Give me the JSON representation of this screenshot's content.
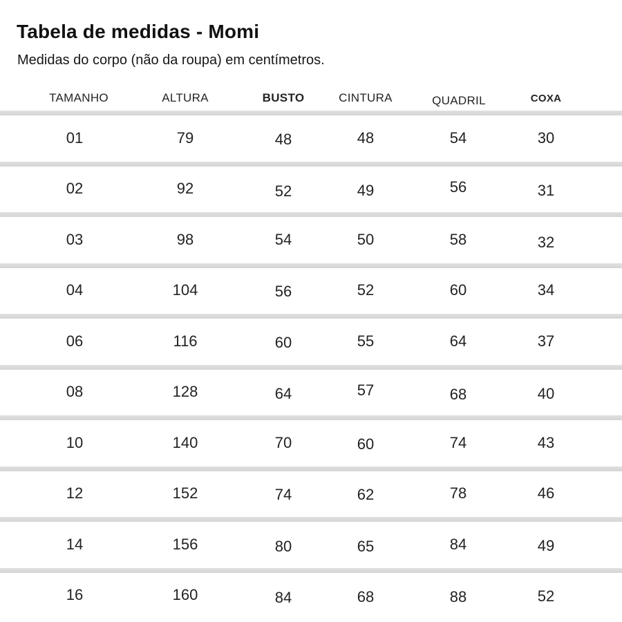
{
  "title": "Tabela de medidas - Momi",
  "subtitle": "Medidas do corpo (não da roupa) em centímetros.",
  "colors": {
    "background": "#ffffff",
    "text": "#1a1a1a",
    "separator": "#d9d9d9"
  },
  "table": {
    "headers": [
      "TAMANHO",
      "ALTURA",
      "BUSTO",
      "CINTURA",
      "QUADRIL",
      "COXA"
    ],
    "unit": "cm",
    "rows": [
      [
        "01",
        "79",
        "48",
        "48",
        "54",
        "30"
      ],
      [
        "02",
        "92",
        "52",
        "49",
        "56",
        "31"
      ],
      [
        "03",
        "98",
        "54",
        "50",
        "58",
        "32"
      ],
      [
        "04",
        "104",
        "56",
        "52",
        "60",
        "34"
      ],
      [
        "06",
        "116",
        "60",
        "55",
        "64",
        "37"
      ],
      [
        "08",
        "128",
        "64",
        "57",
        "68",
        "40"
      ],
      [
        "10",
        "140",
        "70",
        "60",
        "74",
        "43"
      ],
      [
        "12",
        "152",
        "74",
        "62",
        "78",
        "46"
      ],
      [
        "14",
        "156",
        "80",
        "65",
        "84",
        "49"
      ],
      [
        "16",
        "160",
        "84",
        "68",
        "88",
        "52"
      ]
    ]
  }
}
